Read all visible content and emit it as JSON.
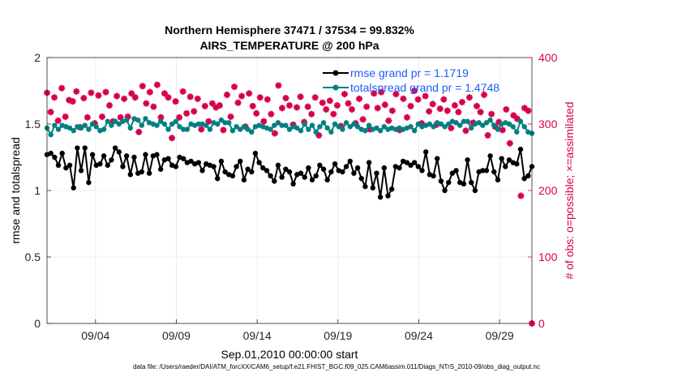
{
  "chart_data": {
    "type": "line",
    "title_line1": "Northern Hemisphere 37471 / 37534 = 99.832%",
    "title_line2": "AIRS_TEMPERATURE @ 200 hPa",
    "xlabel": "Sep.01,2010 00:00:00 start",
    "ylabel_left": "rmse and totalspread",
    "ylabel_right": "# of obs: o=possible; ×=assimilated",
    "x_range": [
      0,
      30.0
    ],
    "x_tick_values": [
      3,
      8,
      13,
      18,
      23,
      28
    ],
    "x_tick_labels": [
      "09/04",
      "09/09",
      "09/14",
      "09/19",
      "09/24",
      "09/29"
    ],
    "y_left_range": [
      0,
      2
    ],
    "y_left_ticks": [
      "0",
      "0.5",
      "1",
      "1.5",
      "2"
    ],
    "y_right_range": [
      0,
      400
    ],
    "y_right_ticks": [
      "0",
      "100",
      "200",
      "300",
      "400"
    ],
    "grid": true,
    "legend_position": "top-right",
    "colors": {
      "rmse": "#000000",
      "spread": "#008080",
      "obs": "#d6004f",
      "legend_text": "#1f5cff"
    },
    "series": [
      {
        "name": "rmse grand pr = 1.1719",
        "axis": "left",
        "values": [
          1.27,
          1.28,
          1.25,
          1.19,
          1.28,
          1.17,
          1.19,
          1.02,
          1.32,
          1.15,
          1.32,
          1.06,
          1.27,
          1.19,
          1.2,
          1.26,
          1.19,
          1.23,
          1.32,
          1.29,
          1.18,
          1.26,
          1.12,
          1.25,
          1.13,
          1.14,
          1.27,
          1.13,
          1.26,
          1.27,
          1.16,
          1.23,
          1.24,
          1.19,
          1.18,
          1.25,
          1.24,
          1.21,
          1.22,
          1.2,
          1.21,
          1.15,
          1.2,
          1.19,
          1.18,
          1.09,
          1.22,
          1.14,
          1.12,
          1.11,
          1.18,
          1.22,
          1.08,
          1.16,
          1.14,
          1.28,
          1.21,
          1.17,
          1.15,
          1.11,
          1.07,
          1.19,
          1.1,
          1.16,
          1.14,
          1.05,
          1.12,
          1.13,
          1.1,
          1.17,
          1.08,
          1.11,
          1.19,
          1.16,
          1.08,
          1.14,
          1.2,
          1.15,
          1.14,
          1.18,
          1.22,
          1.13,
          1.17,
          1.09,
          1.03,
          1.21,
          1.02,
          1.13,
          0.95,
          1.17,
          0.96,
          1.01,
          1.18,
          1.17,
          1.22,
          1.21,
          1.19,
          1.21,
          1.18,
          1.15,
          1.29,
          1.12,
          1.11,
          1.24,
          1.07,
          1.0,
          1.06,
          1.13,
          1.15,
          1.06,
          1.05,
          1.23,
          1.06,
          1.0,
          1.14,
          1.15,
          1.15,
          1.26,
          1.14,
          1.08,
          1.24,
          1.18,
          1.23,
          1.21,
          1.2,
          1.31,
          1.09,
          1.11,
          1.18
        ]
      },
      {
        "name": "totalspread grand pr = 1.4748",
        "axis": "left",
        "values": [
          1.47,
          1.42,
          1.49,
          1.46,
          1.49,
          1.48,
          1.47,
          1.45,
          1.48,
          1.47,
          1.49,
          1.46,
          1.5,
          1.48,
          1.45,
          1.46,
          1.52,
          1.49,
          1.52,
          1.5,
          1.52,
          1.53,
          1.47,
          1.54,
          1.53,
          1.49,
          1.54,
          1.51,
          1.5,
          1.49,
          1.52,
          1.5,
          1.46,
          1.5,
          1.52,
          1.48,
          1.46,
          1.46,
          1.5,
          1.49,
          1.5,
          1.5,
          1.49,
          1.46,
          1.51,
          1.5,
          1.53,
          1.51,
          1.51,
          1.45,
          1.48,
          1.46,
          1.48,
          1.46,
          1.44,
          1.48,
          1.49,
          1.48,
          1.47,
          1.46,
          1.49,
          1.51,
          1.49,
          1.49,
          1.46,
          1.48,
          1.47,
          1.45,
          1.5,
          1.46,
          1.49,
          1.44,
          1.48,
          1.51,
          1.47,
          1.44,
          1.5,
          1.48,
          1.46,
          1.51,
          1.48,
          1.5,
          1.48,
          1.46,
          1.45,
          1.49,
          1.46,
          1.47,
          1.45,
          1.48,
          1.46,
          1.47,
          1.46,
          1.47,
          1.46,
          1.47,
          1.48,
          1.45,
          1.5,
          1.48,
          1.49,
          1.5,
          1.48,
          1.51,
          1.5,
          1.48,
          1.5,
          1.52,
          1.51,
          1.49,
          1.52,
          1.52,
          1.47,
          1.5,
          1.51,
          1.49,
          1.51,
          1.53,
          1.49,
          1.46,
          1.5,
          1.51,
          1.5,
          1.48,
          1.44,
          1.52,
          1.48,
          1.44,
          1.43
        ]
      },
      {
        "name": "# of obs (possible / assimilated)",
        "axis": "right",
        "values": [
          347,
          318,
          340,
          305,
          354,
          311,
          336,
          334,
          349,
          295,
          339,
          310,
          347,
          301,
          343,
          311,
          348,
          328,
          304,
          342,
          310,
          338,
          311,
          346,
          340,
          288,
          357,
          331,
          348,
          326,
          359,
          310,
          346,
          340,
          279,
          334,
          310,
          349,
          316,
          341,
          319,
          338,
          292,
          327,
          304,
          331,
          325,
          328,
          291,
          344,
          311,
          356,
          332,
          342,
          296,
          346,
          327,
          316,
          340,
          304,
          337,
          315,
          286,
          358,
          324,
          339,
          328,
          299,
          325,
          341,
          303,
          326,
          315,
          340,
          283,
          332,
          322,
          335,
          315,
          328,
          297,
          345,
          331,
          322,
          301,
          338,
          307,
          326,
          292,
          346,
          324,
          348,
          329,
          305,
          320,
          345,
          291,
          338,
          310,
          327,
          350,
          337,
          301,
          342,
          319,
          330,
          299,
          323,
          337,
          320,
          294,
          328,
          318,
          333,
          290,
          340,
          302,
          327,
          318,
          344,
          283,
          315,
          296,
          303,
          291,
          322,
          271,
          313,
          308,
          192,
          324,
          320,
          0
        ],
        "note_values": "obs counts at 4 per day; the final point sits at 0"
      }
    ]
  },
  "footer": {
    "text": "data file: /Users/raeder/DAI/ATM_forcXX/CAM6_setup/f.e21.FHIST_BGC.f09_025.CAM6assim.011/Diags_NTrS_2010-09/obs_diag_output.nc"
  }
}
